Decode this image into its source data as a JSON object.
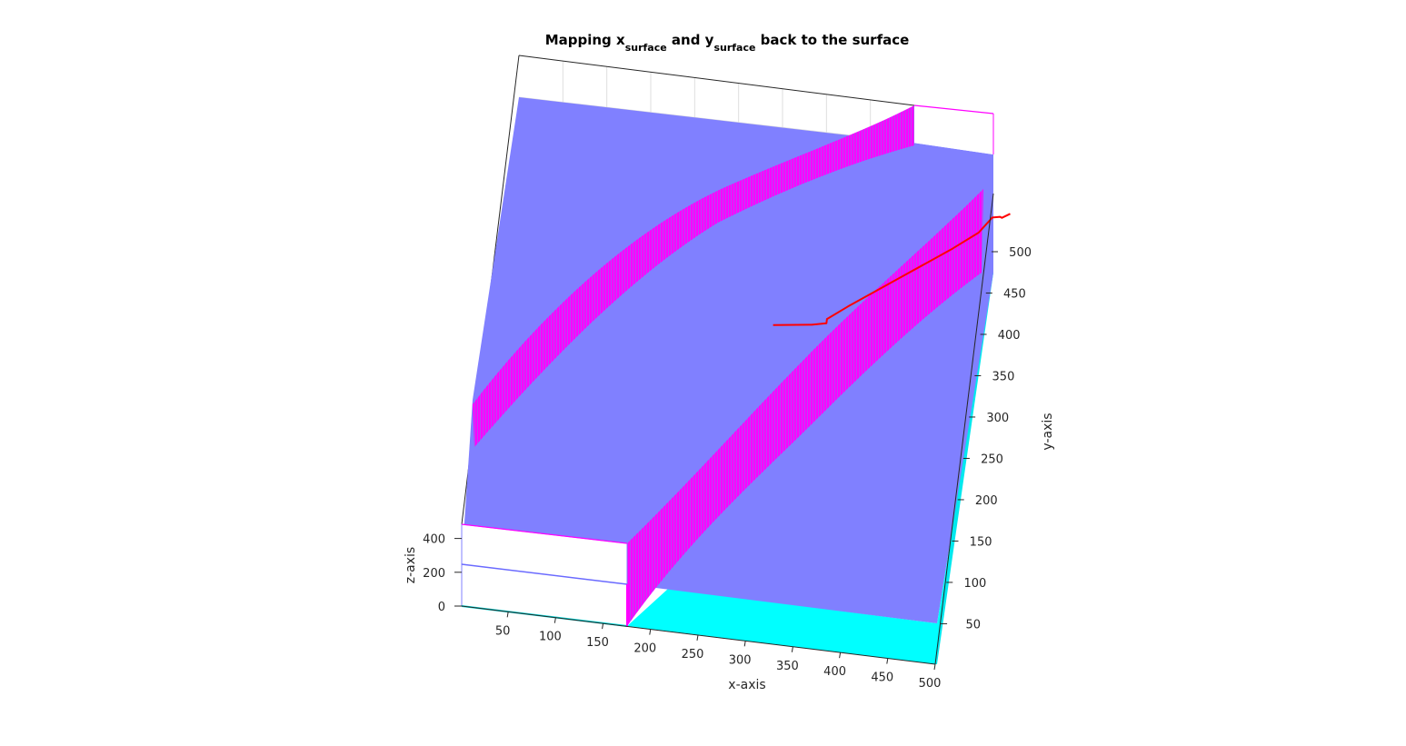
{
  "chart_data": {
    "type": "surface3d",
    "title": {
      "parts": [
        {
          "text": "Mapping x",
          "sub": false
        },
        {
          "text": "surface",
          "sub": true
        },
        {
          "text": " and y",
          "sub": false
        },
        {
          "text": "surface",
          "sub": true
        },
        {
          "text": " back to the surface",
          "sub": false
        }
      ]
    },
    "xlabel": "x-axis",
    "ylabel": "y-axis",
    "zlabel": "z-axis",
    "xlim": [
      1,
      500
    ],
    "ylim": [
      1,
      500
    ],
    "zlim": [
      0,
      500
    ],
    "x_ticks": [
      50,
      100,
      150,
      200,
      250,
      300,
      350,
      400,
      450,
      500
    ],
    "y_ticks": [
      50,
      100,
      150,
      200,
      250,
      300,
      350,
      400,
      450,
      500
    ],
    "z_ticks": [
      0,
      200,
      400
    ],
    "grid": true,
    "colors": {
      "surface_top": "#8080ff",
      "surface_wall": "#ff00ff",
      "surface_low": "#00ffff",
      "path": "#ff0000",
      "box_edge": "#262626"
    },
    "surface": {
      "plateau_z": 240,
      "low_z": 0,
      "walls": [
        {
          "name": "upper ridge",
          "from_x": 1,
          "from_y": 280,
          "to_x": 430,
          "to_y": 500
        },
        {
          "name": "lower ridge",
          "from_x": 175,
          "from_y": 1,
          "to_x": 500,
          "to_y": 420
        }
      ]
    },
    "path": {
      "x": [
        290,
        330,
        345,
        345,
        365,
        390,
        415,
        440,
        465,
        490,
        502,
        510,
        512,
        520
      ],
      "y": [
        330,
        336,
        340,
        345,
        363,
        384,
        405,
        426,
        447,
        470,
        490,
        492,
        491,
        497
      ]
    }
  }
}
